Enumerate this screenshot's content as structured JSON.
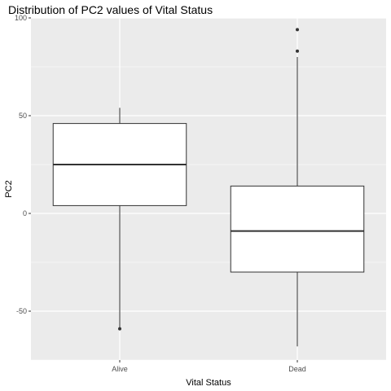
{
  "chart_data": {
    "type": "boxplot",
    "title": "Distribution of PC2 values of Vital Status",
    "xlabel": "Vital Status",
    "ylabel": "PC2",
    "ylim": [
      -75,
      100
    ],
    "yticks": [
      -50,
      0,
      50,
      100
    ],
    "grid": true,
    "categories": [
      "Alive",
      "Dead"
    ],
    "boxes": [
      {
        "category": "Alive",
        "whisker_low": -59,
        "q1": 4,
        "median": 25,
        "q3": 46,
        "whisker_high": 54,
        "outliers": [
          -59
        ]
      },
      {
        "category": "Dead",
        "whisker_low": -68,
        "q1": -30,
        "median": -9,
        "q3": 14,
        "whisker_high": 80,
        "outliers": [
          83,
          94
        ]
      }
    ],
    "colors": {
      "panel": "#ebebeb",
      "grid": "#ffffff",
      "box_fill": "#ffffff",
      "stroke": "#333333",
      "tick_text": "#4d4d4d"
    }
  }
}
